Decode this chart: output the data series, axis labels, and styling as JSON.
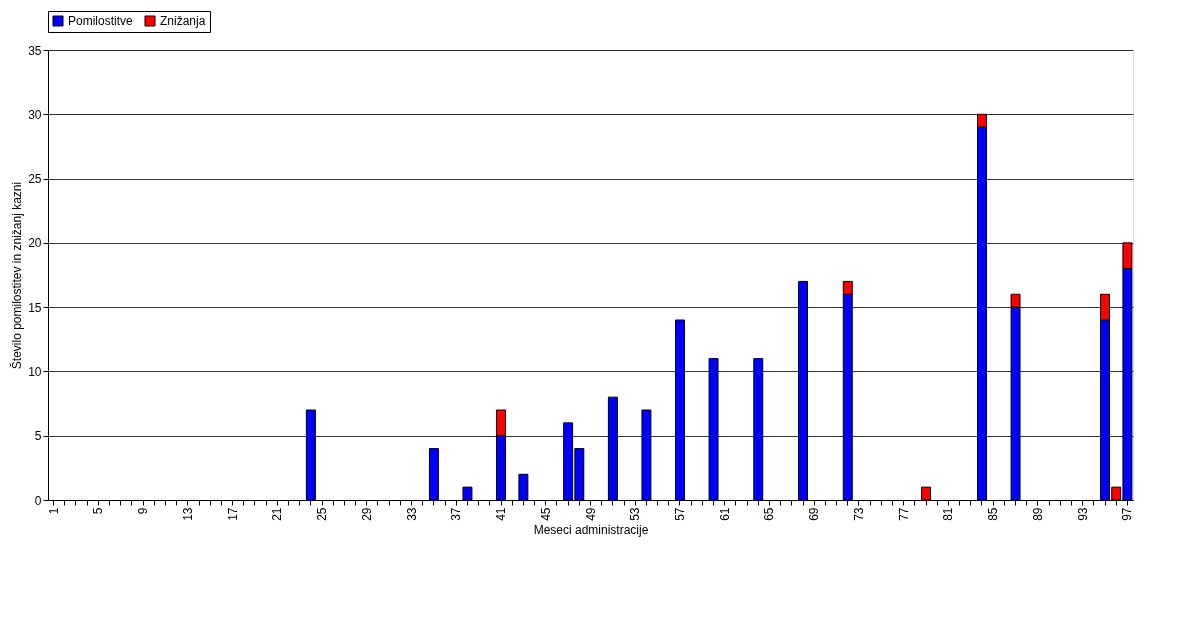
{
  "chart_data": {
    "type": "bar",
    "stacked": true,
    "xlabel": "Meseci administracije",
    "ylabel": "Število pomilostitev in znižanj kazni",
    "categories": [
      "1",
      null,
      null,
      null,
      "5",
      null,
      null,
      null,
      "9",
      null,
      null,
      null,
      "13",
      null,
      null,
      null,
      "17",
      null,
      null,
      null,
      "21",
      null,
      null,
      null,
      "25",
      null,
      null,
      null,
      "29",
      null,
      null,
      null,
      "33",
      null,
      null,
      null,
      "37",
      null,
      null,
      null,
      "41",
      null,
      null,
      null,
      "45",
      null,
      null,
      null,
      "49",
      null,
      null,
      null,
      "53",
      null,
      null,
      null,
      "57",
      null,
      null,
      null,
      "61",
      null,
      null,
      null,
      "65",
      null,
      null,
      null,
      "69",
      null,
      null,
      null,
      "73",
      null,
      null,
      null,
      "77",
      null,
      null,
      null,
      "81",
      null,
      null,
      null,
      "85",
      null,
      null,
      null,
      "89",
      null,
      null,
      null,
      "93",
      null,
      null,
      null,
      "97"
    ],
    "series": [
      {
        "name": "Pomilostitve",
        "color": "#0000ff",
        "values": [
          null,
          null,
          null,
          null,
          null,
          null,
          null,
          null,
          null,
          null,
          null,
          null,
          null,
          null,
          null,
          null,
          null,
          null,
          null,
          null,
          null,
          null,
          null,
          7,
          null,
          null,
          null,
          null,
          null,
          null,
          null,
          null,
          null,
          null,
          4,
          null,
          null,
          1,
          null,
          null,
          5,
          null,
          2,
          null,
          null,
          null,
          6,
          4,
          null,
          null,
          8,
          null,
          null,
          7,
          null,
          null,
          14,
          null,
          null,
          11,
          null,
          null,
          null,
          11,
          null,
          null,
          null,
          17,
          null,
          null,
          null,
          16,
          null,
          null,
          null,
          null,
          null,
          null,
          null,
          null,
          null,
          null,
          null,
          29,
          null,
          null,
          15,
          null,
          null,
          null,
          null,
          null,
          null,
          null,
          14,
          null,
          18
        ]
      },
      {
        "name": "Znižanja",
        "color": "#ff0000",
        "values": [
          null,
          null,
          null,
          null,
          null,
          null,
          null,
          null,
          null,
          null,
          null,
          null,
          null,
          null,
          null,
          null,
          null,
          null,
          null,
          null,
          null,
          null,
          null,
          null,
          null,
          null,
          null,
          null,
          null,
          null,
          null,
          null,
          null,
          null,
          null,
          null,
          null,
          null,
          null,
          null,
          2,
          null,
          null,
          null,
          null,
          null,
          null,
          null,
          null,
          null,
          null,
          null,
          null,
          null,
          null,
          null,
          null,
          null,
          null,
          null,
          null,
          null,
          null,
          null,
          null,
          null,
          null,
          null,
          null,
          null,
          null,
          1,
          null,
          null,
          null,
          null,
          null,
          null,
          1,
          null,
          null,
          null,
          null,
          1,
          null,
          null,
          1,
          null,
          null,
          null,
          null,
          null,
          null,
          null,
          2,
          1,
          2
        ]
      }
    ],
    "ylim": [
      0,
      35
    ],
    "yticks": [
      0,
      5,
      10,
      15,
      20,
      25,
      30,
      35
    ],
    "grid": "y",
    "legend": "top"
  }
}
